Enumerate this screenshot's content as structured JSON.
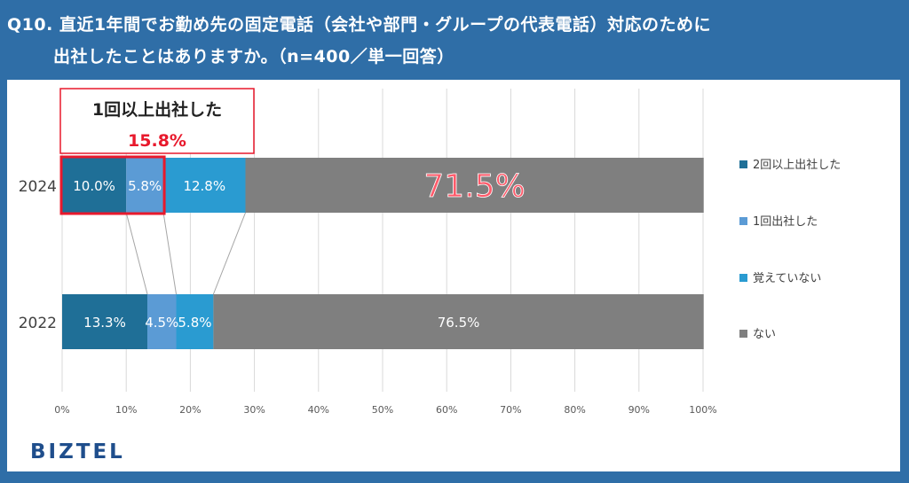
{
  "header": {
    "line1": "Q10. 直近1年間でお勤め先の固定電話（会社や部門・グループの代表電話）対応のために",
    "line2": "出社したことはありますか。（n=400／単一回答）"
  },
  "callout": {
    "label": "1回以上出社した",
    "value": "15.8%"
  },
  "highlight_label": "71.5%",
  "brand": {
    "logo_text": "BIZTEL"
  },
  "colors": {
    "background": "#2f6ea7",
    "twice_plus": "#1f6f97",
    "once": "#5b9bd5",
    "not_remember": "#2a9bd1",
    "no": "#7f7f7f",
    "callout_border": "#e8192c",
    "callout_value": "#e8192c"
  },
  "chart_data": {
    "type": "bar",
    "orientation": "horizontal",
    "stacked": true,
    "categories": [
      "2024",
      "2022"
    ],
    "series": [
      {
        "name": "2回以上出社した",
        "values": [
          10.0,
          13.3
        ],
        "labels": [
          "10.0%",
          "13.3%"
        ]
      },
      {
        "name": "1回出社した",
        "values": [
          5.8,
          4.5
        ],
        "labels": [
          "5.8%",
          "4.5%"
        ]
      },
      {
        "name": "覚えていない",
        "values": [
          12.8,
          5.8
        ],
        "labels": [
          "12.8%",
          "5.8%"
        ]
      },
      {
        "name": "ない",
        "values": [
          71.5,
          76.5
        ],
        "labels": [
          "",
          "76.5%"
        ]
      }
    ],
    "xlim": [
      0,
      100
    ],
    "xticks": [
      "0%",
      "10%",
      "20%",
      "30%",
      "40%",
      "50%",
      "60%",
      "70%",
      "80%",
      "90%",
      "100%"
    ],
    "grid": true,
    "legend_position": "right"
  }
}
